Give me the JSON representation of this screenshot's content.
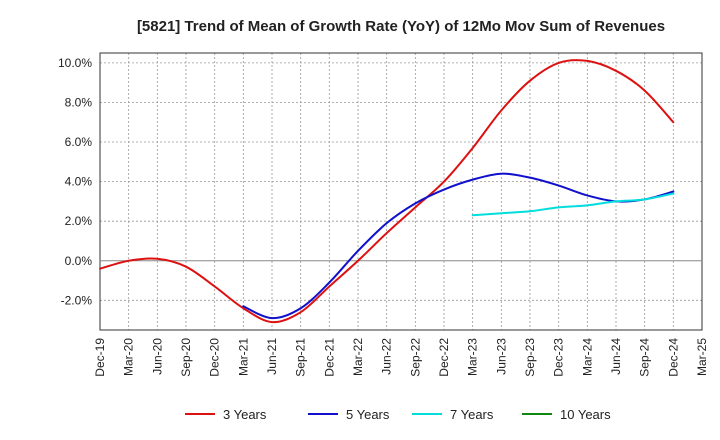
{
  "chart_data": {
    "type": "line",
    "title": "[5821]  Trend of Mean of Growth Rate (YoY) of 12Mo Mov Sum of Revenues",
    "xlabel": "",
    "ylabel": "",
    "ylim": [
      -3.5,
      10.5
    ],
    "y_ticks": [
      -2.0,
      0.0,
      2.0,
      4.0,
      6.0,
      8.0,
      10.0
    ],
    "y_tick_labels": [
      "-2.0%",
      "0.0%",
      "2.0%",
      "4.0%",
      "6.0%",
      "8.0%",
      "10.0%"
    ],
    "x_tick_labels": [
      "Dec-19",
      "Mar-20",
      "Jun-20",
      "Sep-20",
      "Dec-20",
      "Mar-21",
      "Jun-21",
      "Sep-21",
      "Dec-21",
      "Mar-22",
      "Jun-22",
      "Sep-22",
      "Dec-22",
      "Mar-23",
      "Jun-23",
      "Sep-23",
      "Dec-23",
      "Mar-24",
      "Jun-24",
      "Sep-24",
      "Dec-24",
      "Mar-25"
    ],
    "grid": true,
    "legend_position": "bottom",
    "series": [
      {
        "name": "3 Years",
        "color": "#dd1111",
        "x": [
          "Dec-19",
          "Mar-20",
          "Jun-20",
          "Sep-20",
          "Dec-20",
          "Mar-21",
          "Jun-21",
          "Sep-21",
          "Dec-21",
          "Mar-22",
          "Jun-22",
          "Sep-22",
          "Dec-22",
          "Mar-23",
          "Jun-23",
          "Sep-23",
          "Dec-23",
          "Mar-24",
          "Jun-24",
          "Sep-24",
          "Dec-24"
        ],
        "values": [
          -0.4,
          0.0,
          0.1,
          -0.3,
          -1.3,
          -2.4,
          -3.1,
          -2.6,
          -1.3,
          0.0,
          1.4,
          2.7,
          4.0,
          5.7,
          7.6,
          9.1,
          10.0,
          10.1,
          9.6,
          8.6,
          7.0
        ]
      },
      {
        "name": "5 Years",
        "color": "#1111cc",
        "x": [
          "Mar-21",
          "Jun-21",
          "Sep-21",
          "Dec-21",
          "Mar-22",
          "Jun-22",
          "Sep-22",
          "Dec-22",
          "Mar-23",
          "Jun-23",
          "Sep-23",
          "Dec-23",
          "Mar-24",
          "Jun-24",
          "Sep-24",
          "Dec-24"
        ],
        "values": [
          -2.3,
          -2.9,
          -2.4,
          -1.1,
          0.5,
          1.9,
          2.9,
          3.6,
          4.1,
          4.4,
          4.2,
          3.8,
          3.3,
          3.0,
          3.1,
          3.5
        ]
      },
      {
        "name": "7 Years",
        "color": "#00dddd",
        "x": [
          "Mar-23",
          "Jun-23",
          "Sep-23",
          "Dec-23",
          "Mar-24",
          "Jun-24",
          "Sep-24",
          "Dec-24"
        ],
        "values": [
          2.3,
          2.4,
          2.5,
          2.7,
          2.8,
          3.0,
          3.1,
          3.4
        ]
      },
      {
        "name": "10 Years",
        "color": "#118811",
        "x": [],
        "values": []
      }
    ]
  }
}
